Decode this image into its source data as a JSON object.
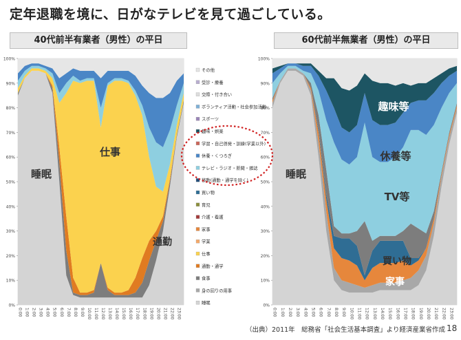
{
  "title": "定年退職を境に、日がなテレビを見て過ごしている。",
  "source_note": "（出典）2011年　総務省「社会生活基本調査」より経済産業省作成",
  "page_number": "18",
  "chart_data": [
    {
      "type": "area",
      "title": "40代前半有業者（男性）の平日",
      "stacked": true,
      "ylim": [
        0,
        100
      ],
      "yticks": [
        "0%",
        "10%",
        "20%",
        "30%",
        "40%",
        "50%",
        "60%",
        "70%",
        "80%",
        "90%",
        "100%"
      ],
      "x_ticks": [
        "0:00",
        "1:00",
        "2:00",
        "3:00",
        "4:00",
        "5:00",
        "6:00",
        "7:00",
        "8:00",
        "9:00",
        "10:00",
        "11:00",
        "12:00",
        "13:00",
        "14:00",
        "15:00",
        "16:00",
        "17:00",
        "18:00",
        "19:00",
        "20:00",
        "21:00",
        "22:00",
        "23:00"
      ],
      "x": [
        0,
        1,
        2,
        3,
        4,
        5,
        6,
        7,
        8,
        9,
        10,
        11,
        12,
        13,
        14,
        15,
        16,
        17,
        18,
        19,
        20,
        21,
        22,
        23,
        24
      ],
      "series": [
        {
          "name": "睡眠",
          "values": [
            85,
            92,
            95,
            95,
            94,
            86,
            50,
            12,
            4,
            3,
            3,
            3,
            3,
            3,
            3,
            3,
            3,
            3,
            3,
            8,
            18,
            30,
            48,
            68,
            82
          ]
        },
        {
          "name": "食事",
          "values": [
            1,
            0,
            0,
            0,
            0,
            2,
            8,
            10,
            1,
            1,
            1,
            2,
            14,
            3,
            1,
            1,
            1,
            2,
            6,
            10,
            8,
            4,
            2,
            1,
            1
          ]
        },
        {
          "name": "通勤・通学",
          "values": [
            0,
            0,
            0,
            0,
            0,
            1,
            6,
            14,
            6,
            1,
            1,
            1,
            0,
            1,
            1,
            1,
            2,
            6,
            10,
            8,
            4,
            2,
            1,
            0,
            0
          ]
        },
        {
          "name": "仕事",
          "values": [
            2,
            1,
            1,
            1,
            1,
            3,
            18,
            50,
            80,
            85,
            86,
            85,
            55,
            82,
            86,
            86,
            84,
            74,
            58,
            34,
            18,
            10,
            6,
            4,
            3
          ]
        },
        {
          "name": "テレビ・ラジオ・新聞・雑誌",
          "values": [
            3,
            2,
            1,
            1,
            1,
            2,
            4,
            4,
            2,
            1,
            1,
            1,
            8,
            1,
            1,
            1,
            1,
            2,
            4,
            12,
            18,
            18,
            14,
            8,
            4
          ]
        },
        {
          "name": "休養・くつろぎ",
          "values": [
            3,
            2,
            1,
            1,
            1,
            2,
            6,
            4,
            3,
            4,
            3,
            3,
            12,
            5,
            3,
            3,
            4,
            6,
            8,
            14,
            18,
            20,
            15,
            10,
            4
          ]
        },
        {
          "name": "その他",
          "values": [
            6,
            3,
            2,
            2,
            3,
            4,
            8,
            6,
            4,
            5,
            5,
            5,
            8,
            5,
            5,
            5,
            5,
            7,
            11,
            14,
            16,
            16,
            14,
            9,
            6
          ]
        }
      ],
      "annotations": [
        "睡眠",
        "仕事",
        "通勤"
      ]
    },
    {
      "type": "area",
      "title": "60代前半無業者（男性）の平日",
      "stacked": true,
      "ylim": [
        0,
        100
      ],
      "yticks": [
        "0%",
        "10%",
        "20%",
        "30%",
        "40%",
        "50%",
        "60%",
        "70%",
        "80%",
        "90%",
        "100%"
      ],
      "x_ticks": [
        "0:00",
        "1:00",
        "2:00",
        "3:00",
        "4:00",
        "5:00",
        "6:00",
        "7:00",
        "8:00",
        "9:00",
        "10:00",
        "11:00",
        "12:00",
        "13:00",
        "14:00",
        "15:00",
        "16:00",
        "17:00",
        "18:00",
        "19:00",
        "20:00",
        "21:00",
        "22:00",
        "23:00"
      ],
      "x": [
        0,
        1,
        2,
        3,
        4,
        5,
        6,
        7,
        8,
        9,
        10,
        11,
        12,
        13,
        14,
        15,
        16,
        17,
        18,
        19,
        20,
        21,
        22,
        23,
        24
      ],
      "series": [
        {
          "name": "睡眠",
          "values": [
            80,
            90,
            95,
            95,
            93,
            85,
            60,
            30,
            10,
            6,
            5,
            5,
            5,
            5,
            6,
            6,
            6,
            6,
            6,
            8,
            14,
            28,
            48,
            65,
            78
          ]
        },
        {
          "name": "身の回りの用事",
          "values": [
            2,
            1,
            1,
            1,
            1,
            2,
            6,
            8,
            5,
            4,
            4,
            3,
            2,
            3,
            3,
            3,
            3,
            4,
            5,
            6,
            6,
            5,
            4,
            3,
            2
          ]
        },
        {
          "name": "家事",
          "values": [
            1,
            0,
            0,
            0,
            0,
            1,
            4,
            5,
            8,
            9,
            9,
            8,
            3,
            7,
            8,
            8,
            8,
            8,
            5,
            4,
            3,
            2,
            1,
            1,
            1
          ]
        },
        {
          "name": "買い物",
          "values": [
            0,
            0,
            0,
            0,
            0,
            0,
            1,
            2,
            5,
            8,
            9,
            8,
            2,
            7,
            9,
            9,
            9,
            8,
            3,
            1,
            0,
            0,
            0,
            0,
            0
          ]
        },
        {
          "name": "食事",
          "values": [
            1,
            0,
            0,
            0,
            0,
            2,
            6,
            10,
            4,
            2,
            2,
            6,
            22,
            4,
            2,
            2,
            2,
            4,
            14,
            12,
            6,
            3,
            1,
            1,
            1
          ]
        },
        {
          "name": "テレビ・ラジオ・新聞・雑誌",
          "values": [
            6,
            3,
            1,
            1,
            1,
            4,
            10,
            20,
            34,
            30,
            28,
            30,
            40,
            34,
            30,
            30,
            32,
            34,
            38,
            40,
            40,
            35,
            26,
            16,
            8
          ]
        },
        {
          "name": "休養・くつろぎ",
          "values": [
            4,
            2,
            1,
            1,
            2,
            3,
            6,
            12,
            14,
            13,
            13,
            13,
            12,
            15,
            15,
            15,
            14,
            14,
            11,
            12,
            14,
            13,
            10,
            7,
            5
          ]
        },
        {
          "name": "趣味・娯楽",
          "values": [
            2,
            1,
            0,
            0,
            1,
            1,
            2,
            5,
            12,
            16,
            17,
            16,
            8,
            16,
            17,
            17,
            15,
            12,
            7,
            7,
            7,
            6,
            4,
            3,
            2
          ]
        },
        {
          "name": "その他",
          "values": [
            4,
            3,
            2,
            2,
            2,
            2,
            5,
            8,
            8,
            12,
            13,
            11,
            6,
            9,
            10,
            10,
            11,
            10,
            11,
            10,
            10,
            8,
            6,
            4,
            3
          ]
        }
      ],
      "annotations": [
        "睡眠",
        "趣味等",
        "休養等",
        "TV等",
        "買い物",
        "家事"
      ]
    }
  ],
  "legend": {
    "items": [
      {
        "label": "その他",
        "color": "#e6e6e6"
      },
      {
        "label": "受診・療養",
        "color": "#b9aed0"
      },
      {
        "label": "交際・付き合い",
        "color": "#dddddd"
      },
      {
        "label": "ボランティア活動・社会参加活動",
        "color": "#7fb0d6"
      },
      {
        "label": "スポーツ",
        "color": "#9a86b8"
      },
      {
        "label": "趣味・娯楽",
        "color": "#1d5563"
      },
      {
        "label": "学習・自己啓発・訓練(学業以外)",
        "color": "#c9665a"
      },
      {
        "label": "休養・くつろぎ",
        "color": "#4a86c6"
      },
      {
        "label": "テレビ・ラジオ・新聞・雑誌",
        "color": "#8ecfe0"
      },
      {
        "label": "移動(通勤・通学を除く)",
        "color": "#234e7a"
      },
      {
        "label": "買い物",
        "color": "#2f6d94"
      },
      {
        "label": "育児",
        "color": "#8c8f3e"
      },
      {
        "label": "介護・看護",
        "color": "#a33b3b"
      },
      {
        "label": "家事",
        "color": "#e6873c"
      },
      {
        "label": "学業",
        "color": "#f4a96a"
      },
      {
        "label": "仕事",
        "color": "#fbd24e"
      },
      {
        "label": "通勤・通学",
        "color": "#e07b21"
      },
      {
        "label": "食事",
        "color": "#7d7d7d"
      },
      {
        "label": "身の回りの用事",
        "color": "#a8a8a8"
      },
      {
        "label": "睡眠",
        "color": "#d4d4d4"
      }
    ]
  }
}
